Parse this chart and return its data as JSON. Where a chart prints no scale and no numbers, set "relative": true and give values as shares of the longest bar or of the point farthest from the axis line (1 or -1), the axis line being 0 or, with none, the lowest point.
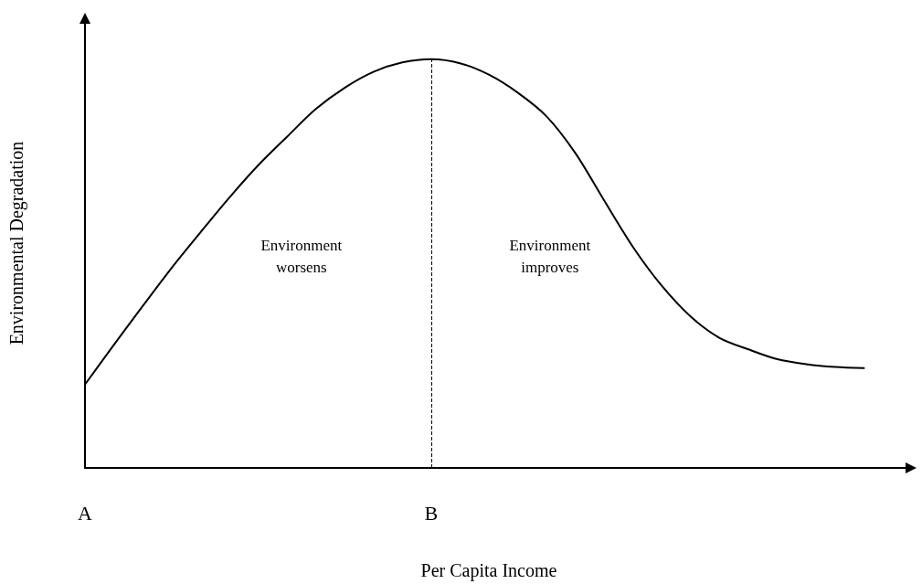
{
  "chart_data": {
    "type": "line",
    "relative": true,
    "xlabel": "Per Capita Income",
    "ylabel": "Environmental Degradation",
    "categories": [
      "A",
      null,
      null,
      null,
      null,
      null,
      null,
      null,
      null,
      null,
      null,
      null,
      "B",
      null,
      null,
      null,
      null,
      null,
      null,
      null,
      null,
      null,
      null,
      null,
      null,
      null,
      null,
      null,
      null
    ],
    "marker": "none",
    "line_style": "solid",
    "grid": false,
    "series": [
      {
        "color": "#000000",
        "values": [
          0.204,
          0.301,
          0.396,
          0.489,
          0.576,
          0.661,
          0.74,
          0.81,
          0.878,
          0.93,
          0.969,
          0.992,
          1,
          0.99,
          0.962,
          0.918,
          0.86,
          0.77,
          0.654,
          0.54,
          0.445,
          0.37,
          0.318,
          0.29,
          0.266,
          0.254,
          0.247,
          0.244,
          null
        ]
      }
    ],
    "ref_lines": [
      {
        "axis": "x",
        "value": "B",
        "color": "#000000",
        "line_style": "dashed"
      }
    ],
    "annotations": [
      "Environment\nworsens",
      "Environment\nimproves"
    ]
  }
}
